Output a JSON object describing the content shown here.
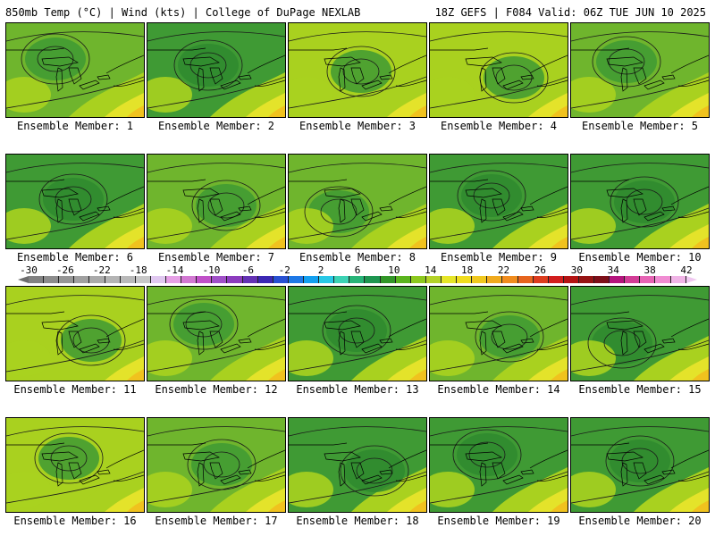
{
  "header": {
    "left": "850mb Temp (°C) | Wind (kts) | College of DuPage NEXLAB",
    "right": "18Z GEFS | F084 Valid: 06Z TUE JUN 10 2025"
  },
  "members": [
    {
      "label": "Ensemble Member: 1",
      "dominant": "mid"
    },
    {
      "label": "Ensemble Member: 2",
      "dominant": "cool"
    },
    {
      "label": "Ensemble Member: 3",
      "dominant": "warm"
    },
    {
      "label": "Ensemble Member: 4",
      "dominant": "warm"
    },
    {
      "label": "Ensemble Member: 5",
      "dominant": "mid"
    },
    {
      "label": "Ensemble Member: 6",
      "dominant": "cool"
    },
    {
      "label": "Ensemble Member: 7",
      "dominant": "mid"
    },
    {
      "label": "Ensemble Member: 8",
      "dominant": "mid"
    },
    {
      "label": "Ensemble Member: 9",
      "dominant": "cool"
    },
    {
      "label": "Ensemble Member: 10",
      "dominant": "cool"
    },
    {
      "label": "Ensemble Member: 11",
      "dominant": "warm"
    },
    {
      "label": "Ensemble Member: 12",
      "dominant": "mid"
    },
    {
      "label": "Ensemble Member: 13",
      "dominant": "cool"
    },
    {
      "label": "Ensemble Member: 14",
      "dominant": "mid"
    },
    {
      "label": "Ensemble Member: 15",
      "dominant": "cool"
    },
    {
      "label": "Ensemble Member: 16",
      "dominant": "warm"
    },
    {
      "label": "Ensemble Member: 17",
      "dominant": "mid"
    },
    {
      "label": "Ensemble Member: 18",
      "dominant": "cool"
    },
    {
      "label": "Ensemble Member: 19",
      "dominant": "cool"
    },
    {
      "label": "Ensemble Member: 20",
      "dominant": "cool"
    }
  ],
  "colorbar": {
    "unit": "°C",
    "labels": [
      "-30",
      "-26",
      "-22",
      "-18",
      "-14",
      "-10",
      "-6",
      "-2",
      "2",
      "6",
      "10",
      "14",
      "18",
      "22",
      "26",
      "30",
      "34",
      "38",
      "42"
    ],
    "colors": [
      "#828282",
      "#8c8c8c",
      "#969696",
      "#a0a0a0",
      "#aaaaaa",
      "#b4b4b4",
      "#b9b9b9",
      "#c8c8c8",
      "#e0c8f0",
      "#e6a0e6",
      "#d278d2",
      "#c050c8",
      "#a050c8",
      "#8c3cbe",
      "#6432b4",
      "#3c28b4",
      "#2850d2",
      "#1e78e6",
      "#14a0f0",
      "#28c8e6",
      "#3cd2b4",
      "#28b478",
      "#1e9650",
      "#329628",
      "#5ab41e",
      "#8cc81e",
      "#b4d228",
      "#e6e628",
      "#f0dc1e",
      "#f0c81e",
      "#f0aa1e",
      "#f08c1e",
      "#e6641e",
      "#dc3c1e",
      "#d21e1e",
      "#b41414",
      "#961414",
      "#7d0f19",
      "#b4147d",
      "#d23c96",
      "#e664b4",
      "#f08cd2",
      "#f0b4e6"
    ],
    "right_color": "#f0c8f0"
  },
  "palette": {
    "cool": "#3f9a34",
    "mid": "#6fb52d",
    "warm": "#a9d11f",
    "hot": "#e4e32a",
    "orange": "#f0c21e"
  }
}
